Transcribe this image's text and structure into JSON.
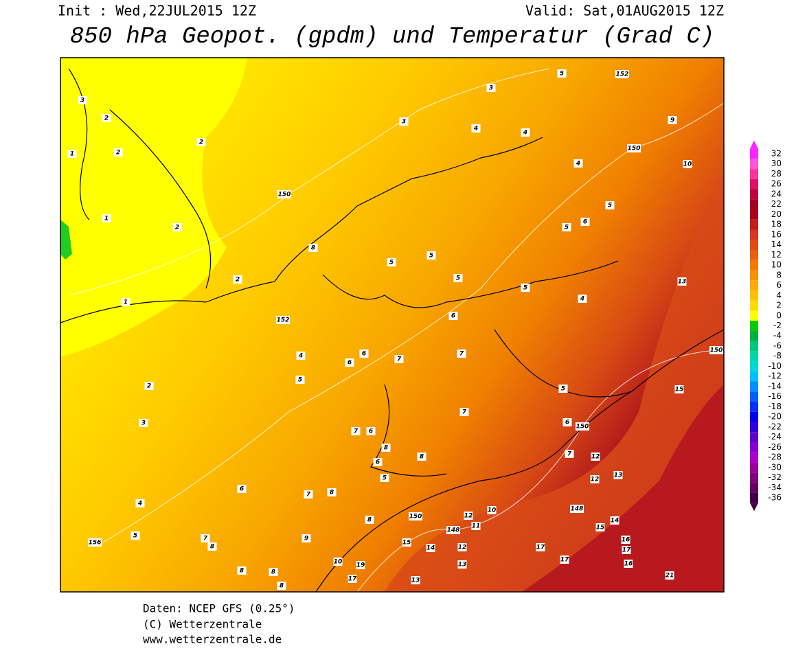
{
  "header": {
    "init": "Init : Wed,22JUL2015 12Z",
    "valid": "Valid: Sat,01AUG2015 12Z",
    "title": "850 hPa Geopot. (gpdm) und Temperatur (Grad C)"
  },
  "colorbar": {
    "ticks": [
      32,
      30,
      28,
      26,
      24,
      22,
      20,
      18,
      16,
      14,
      12,
      10,
      8,
      6,
      4,
      2,
      0,
      -2,
      -4,
      -6,
      -8,
      -10,
      -12,
      -14,
      -16,
      -18,
      -20,
      -22,
      -24,
      -26,
      -28,
      -30,
      -32,
      -34,
      -36
    ],
    "colors": [
      "#ff22ff",
      "#ff55dd",
      "#ff3399",
      "#e0106a",
      "#c0003c",
      "#a00022",
      "#a8001c",
      "#c41e1a",
      "#d43820",
      "#e04a12",
      "#ea6010",
      "#f07a00",
      "#f89200",
      "#ffaa00",
      "#ffc200",
      "#ffdc00",
      "#ffff00",
      "#00cc00",
      "#00b040",
      "#00c878",
      "#00d8a8",
      "#00d8d8",
      "#00c0ff",
      "#0090ff",
      "#0060ff",
      "#0030ff",
      "#0000ee",
      "#3000dd",
      "#6000cc",
      "#8800cc",
      "#aa00cc",
      "#990099",
      "#800080",
      "#660066",
      "#440044"
    ]
  },
  "map_labels": [
    3,
    2,
    2,
    1,
    2,
    150,
    1,
    2,
    2,
    1,
    152,
    4,
    5,
    2,
    3,
    4,
    5,
    156,
    7,
    6,
    7,
    6,
    6,
    7,
    7,
    6,
    5,
    5,
    5,
    7,
    8,
    8,
    150,
    148,
    12,
    11,
    10,
    150,
    7,
    12,
    12,
    13,
    14,
    148,
    15,
    16,
    17,
    17,
    17,
    16,
    21,
    15,
    150,
    13,
    10,
    9,
    150,
    152,
    5,
    4,
    4,
    5,
    5,
    6,
    5,
    4,
    5,
    6,
    13,
    13,
    12,
    15,
    14,
    17,
    19,
    10,
    8,
    8,
    8,
    8,
    7,
    8,
    9,
    8,
    3,
    3,
    4,
    8,
    6,
    5,
    6
  ],
  "footer": [
    "Daten: NCEP GFS (0.25°)",
    "(C) Wetterzentrale",
    "www.wetterzentrale.de"
  ]
}
